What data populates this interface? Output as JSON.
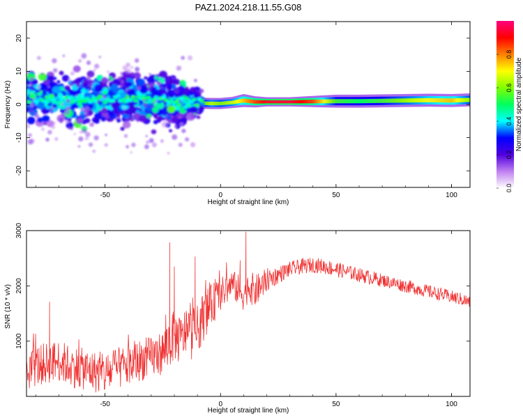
{
  "title": "PAZ1.2024.218.11.55.G08",
  "chart_data": [
    {
      "type": "heatmap",
      "xlabel": "Height of straight line (km)",
      "ylabel": "Frequency (Hz)",
      "xlim": [
        -84,
        108
      ],
      "ylim": [
        -25,
        25
      ],
      "xticks": [
        -50,
        0,
        50,
        100
      ],
      "xtick_labels": [
        "-50",
        "0",
        "50",
        "100"
      ],
      "yticks": [
        -20,
        -10,
        0,
        10,
        20
      ],
      "ytick_labels": [
        "-20",
        "-10",
        "0",
        "10",
        "20"
      ],
      "colorbar": {
        "label": "Normalized spectral amplitude",
        "range": [
          0,
          1
        ],
        "ticks": [
          0.0,
          0.2,
          0.4,
          0.6,
          0.8
        ],
        "tick_labels": [
          "0.0",
          "0.2",
          "0.4",
          "0.6",
          "0.8"
        ],
        "colormap": [
          "#ffffff",
          "#c080f0",
          "#5000e0",
          "#0000ff",
          "#00ffff",
          "#00ff60",
          "#80ff00",
          "#ffff00",
          "#ff8000",
          "#ff0000",
          "#ff0080"
        ]
      },
      "ridge": {
        "x": [
          -84,
          -70,
          -60,
          -50,
          -40,
          -30,
          -20,
          -12,
          -8,
          -4,
          0,
          5,
          10,
          15,
          20,
          30,
          40,
          50,
          60,
          70,
          80,
          90,
          100,
          108
        ],
        "freq": [
          2.0,
          1.8,
          1.5,
          1.8,
          1.5,
          1.2,
          0.8,
          0.6,
          0.4,
          0.3,
          0.3,
          0.6,
          1.2,
          0.8,
          0.8,
          0.8,
          0.9,
          1.0,
          1.0,
          1.1,
          1.2,
          1.3,
          1.2,
          1.4
        ],
        "amplitude": [
          0.25,
          0.3,
          0.3,
          0.3,
          0.3,
          0.3,
          0.3,
          0.3,
          0.55,
          0.65,
          0.6,
          0.65,
          0.75,
          0.85,
          0.92,
          0.95,
          0.85,
          0.55,
          0.5,
          0.55,
          0.62,
          0.7,
          0.75,
          0.6
        ],
        "spread": [
          6,
          6,
          6,
          6,
          6,
          6,
          6,
          3,
          1.2,
          1.2,
          1.2,
          1.2,
          1.4,
          1.2,
          1.0,
          1.0,
          1.2,
          1.4,
          1.4,
          1.4,
          1.4,
          1.4,
          1.4,
          1.4
        ]
      }
    },
    {
      "type": "line",
      "xlabel": "Height of straight line (km)",
      "ylabel": "SNR (10 * v/v)",
      "xlim": [
        -84,
        108
      ],
      "ylim": [
        0,
        3000
      ],
      "xticks": [
        -50,
        0,
        50,
        100
      ],
      "xtick_labels": [
        "-50",
        "0",
        "50",
        "100"
      ],
      "yticks": [
        1000,
        2000,
        3000
      ],
      "ytick_labels": [
        "1000",
        "2000",
        "3000"
      ],
      "color": "#f03030",
      "series": [
        {
          "x": [
            -84,
            -80,
            -75,
            -70,
            -65,
            -60,
            -55,
            -50,
            -45,
            -40,
            -35,
            -30,
            -25,
            -22,
            -20,
            -17,
            -15,
            -12,
            -10,
            -8,
            -5,
            -2,
            0,
            3,
            5,
            8,
            10,
            12,
            15,
            20,
            25,
            30,
            35,
            40,
            45,
            50,
            55,
            60,
            65,
            70,
            75,
            80,
            85,
            90,
            95,
            100,
            105,
            108
          ],
          "y": [
            450,
            550,
            600,
            650,
            550,
            500,
            450,
            400,
            500,
            550,
            650,
            700,
            800,
            1000,
            1100,
            1000,
            1200,
            1100,
            1200,
            1400,
            1600,
            1750,
            1850,
            1950,
            2050,
            1900,
            1850,
            2000,
            1900,
            2100,
            2200,
            2300,
            2350,
            2380,
            2350,
            2300,
            2250,
            2200,
            2150,
            2100,
            2050,
            2000,
            1950,
            1900,
            1850,
            1800,
            1750,
            1700
          ],
          "noise": [
            380,
            380,
            380,
            380,
            380,
            380,
            380,
            380,
            380,
            380,
            380,
            380,
            400,
            500,
            450,
            450,
            450,
            450,
            450,
            450,
            400,
            350,
            300,
            280,
            250,
            300,
            300,
            300,
            300,
            220,
            160,
            140,
            140,
            140,
            140,
            140,
            130,
            130,
            130,
            120,
            120,
            120,
            120,
            120,
            120,
            120,
            120,
            120
          ]
        }
      ],
      "spikes": [
        {
          "x": -22,
          "y": 2790
        },
        {
          "x": -11,
          "y": 2530
        },
        {
          "x": 11,
          "y": 2980
        },
        {
          "x": 8.5,
          "y": 2460
        },
        {
          "x": -74,
          "y": 1710
        },
        {
          "x": -20,
          "y": 2350
        }
      ]
    }
  ]
}
